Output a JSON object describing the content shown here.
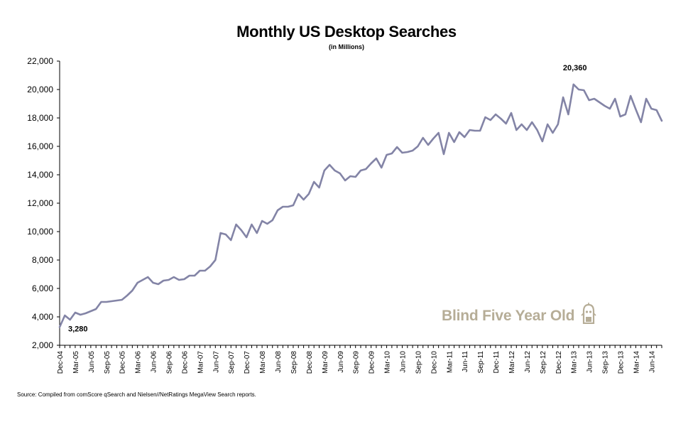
{
  "chart_data": {
    "type": "line",
    "title": "Monthly US Desktop Searches",
    "subtitle": "(in Millions)",
    "xlabel": "",
    "ylabel": "",
    "ylim": [
      2000,
      22000
    ],
    "yticks": [
      2000,
      4000,
      6000,
      8000,
      10000,
      12000,
      14000,
      16000,
      18000,
      20000,
      22000
    ],
    "ytick_labels": [
      "2,000",
      "4,000",
      "6,000",
      "8,000",
      "10,000",
      "12,000",
      "14,000",
      "16,000",
      "18,000",
      "20,000",
      "22,000"
    ],
    "x_start": "Dec-04",
    "x_end": "Jun-14",
    "xtick_labels": [
      "Dec-04",
      "Mar-05",
      "Jun-05",
      "Sep-05",
      "Dec-05",
      "Mar-06",
      "Jun-06",
      "Sep-06",
      "Dec-06",
      "Mar-07",
      "Jun-07",
      "Sep-07",
      "Dec-07",
      "Mar-08",
      "Jun-08",
      "Sep-08",
      "Dec-08",
      "Mar-09",
      "Jun-09",
      "Sep-09",
      "Dec-09",
      "Mar-10",
      "Jun-10",
      "Sep-10",
      "Dec-10",
      "Mar-11",
      "Jun-11",
      "Sep-11",
      "Dec-11",
      "Mar-12",
      "Jun-12",
      "Sep-12",
      "Dec-12",
      "Mar-13",
      "Jun-13",
      "Sep-13",
      "Dec-13",
      "Mar-14",
      "Jun-14"
    ],
    "grid": false,
    "line_color": "#8384a6",
    "series": [
      {
        "values": [
          3280,
          4100,
          3800,
          4300,
          4150,
          4250,
          4400,
          4550,
          5050,
          5050,
          5100,
          5150,
          5200,
          5500,
          5850,
          6400,
          6600,
          6800,
          6400,
          6300,
          6550,
          6600,
          6800,
          6600,
          6650,
          6900,
          6900,
          7250,
          7250,
          7550,
          8000,
          9900,
          9800,
          9400,
          10500,
          10100,
          9600,
          10500,
          9900,
          10750,
          10550,
          10800,
          11500,
          11750,
          11750,
          11850,
          12650,
          12250,
          12650,
          13500,
          13100,
          14300,
          14700,
          14300,
          14100,
          13600,
          13900,
          13850,
          14300,
          14400,
          14800,
          15150,
          14500,
          15400,
          15500,
          15950,
          15550,
          15600,
          15700,
          16000,
          16600,
          16100,
          16550,
          16950,
          15450,
          16950,
          16300,
          17000,
          16650,
          17150,
          17100,
          17100,
          18050,
          17850,
          18250,
          17950,
          17600,
          18350,
          17150,
          17550,
          17150,
          17700,
          17150,
          16350,
          17550,
          16950,
          17550,
          19450,
          18250,
          20360,
          20000,
          19950,
          19250,
          19350,
          19100,
          18850,
          18650,
          19350,
          18100,
          18250,
          19550,
          18600,
          17700,
          19350,
          18650,
          18550,
          17800
        ]
      }
    ],
    "annotations": [
      {
        "label": "3,280",
        "index": 0
      },
      {
        "label": "20,360",
        "index": 99
      }
    ]
  },
  "source": "Source: Compiled from comScore qSearch and Nielsen//NetRatings MegaView Search reports.",
  "watermark": "Blind Five Year Old"
}
